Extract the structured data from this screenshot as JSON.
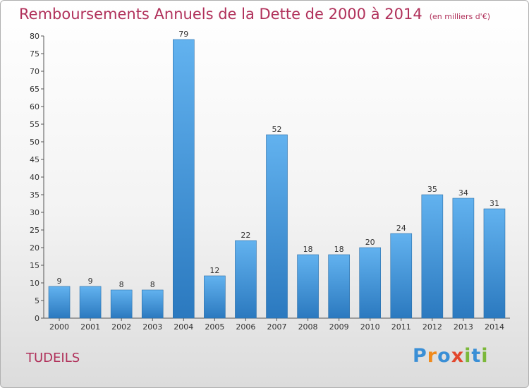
{
  "title": "Remboursements Annuels de la Dette de 2000 à 2014",
  "unit": "(en milliers d'€)",
  "commune": "TUDEILS",
  "logo": {
    "letters": [
      "P",
      "r",
      "o",
      "x",
      "i",
      "t",
      "i"
    ],
    "colors": [
      "#3a8fd6",
      "#f08a1c",
      "#3a8fd6",
      "#e2472d",
      "#7cb83a",
      "#3a8fd6",
      "#7cb83a"
    ]
  },
  "colors": {
    "bar_top": "#62b2ef",
    "bar_bottom": "#2b79bf",
    "title": "#b0305a"
  },
  "chart_data": {
    "type": "bar",
    "categories": [
      "2000",
      "2001",
      "2002",
      "2003",
      "2004",
      "2005",
      "2006",
      "2007",
      "2008",
      "2009",
      "2010",
      "2011",
      "2012",
      "2013",
      "2014"
    ],
    "values": [
      9,
      9,
      8,
      8,
      79,
      12,
      22,
      52,
      18,
      18,
      20,
      24,
      35,
      34,
      31
    ],
    "ylim": [
      0,
      80
    ],
    "yticks": [
      0,
      5,
      10,
      15,
      20,
      25,
      30,
      35,
      40,
      45,
      50,
      55,
      60,
      65,
      70,
      75,
      80
    ],
    "grid": false,
    "legend": "none"
  }
}
